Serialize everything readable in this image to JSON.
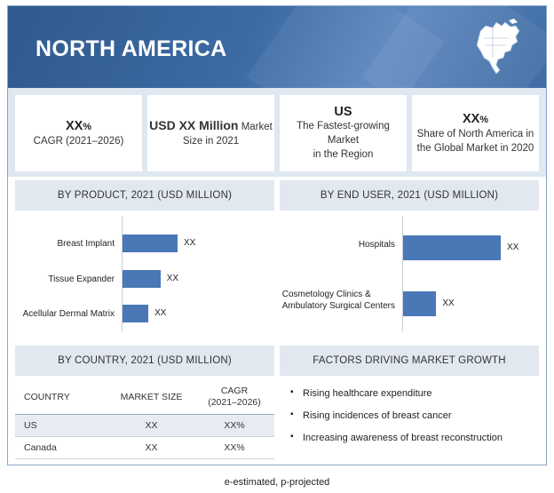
{
  "banner": {
    "title": "NORTH AMERICA",
    "map_icon": "north-america-map-icon"
  },
  "kpis": [
    {
      "value": "XX",
      "unit": "%",
      "label": "CAGR (2021–2026)"
    },
    {
      "value": "USD XX Million",
      "value_suffix": "Market",
      "label": "Size in 2021"
    },
    {
      "value": "US",
      "label_line1": "The Fastest-growing Market",
      "label_line2": "in the Region"
    },
    {
      "value": "XX",
      "unit": "%",
      "label_line1": "Share of North America in",
      "label_line2": "the Global Market in 2020"
    }
  ],
  "product": {
    "heading": "BY PRODUCT, 2021 (USD MILLION)",
    "chart_data": {
      "type": "bar",
      "orientation": "horizontal",
      "categories": [
        "Breast Implant",
        "Tissue Expander",
        "Acellular Dermal Matrix"
      ],
      "relative_values": [
        1.0,
        0.69,
        0.47
      ],
      "data_labels": [
        "XX",
        "XX",
        "XX"
      ]
    }
  },
  "end_user": {
    "heading": "BY END USER, 2021 (USD MILLION)",
    "chart_data": {
      "type": "bar",
      "orientation": "horizontal",
      "categories": [
        "Hospitals",
        "Cosmetology Clinics & Ambulatory Surgical Centers"
      ],
      "category_lines": [
        [
          "Hospitals"
        ],
        [
          "Cosmetology Clinics &",
          "Ambulatory Surgical Centers"
        ]
      ],
      "relative_values": [
        1.0,
        0.34
      ],
      "data_labels": [
        "XX",
        "XX"
      ]
    }
  },
  "country": {
    "heading": "BY COUNTRY, 2021 (USD MILLION)",
    "columns": [
      "COUNTRY",
      "MARKET SIZE",
      "CAGR",
      "(2021–2026)"
    ],
    "rows": [
      {
        "country": "US",
        "size": "XX",
        "cagr": "XX%"
      },
      {
        "country": "Canada",
        "size": "XX",
        "cagr": "XX%"
      }
    ]
  },
  "factors": {
    "heading": "FACTORS DRIVING MARKET GROWTH",
    "items": [
      "Rising healthcare expenditure",
      "Rising incidences of breast cancer",
      "Increasing awareness of breast reconstruction"
    ]
  },
  "footnote": "e-estimated, p-projected",
  "colors": {
    "banner": "#3c6aa3",
    "bar": "#4a78b6",
    "band": "#dfe7f1"
  }
}
